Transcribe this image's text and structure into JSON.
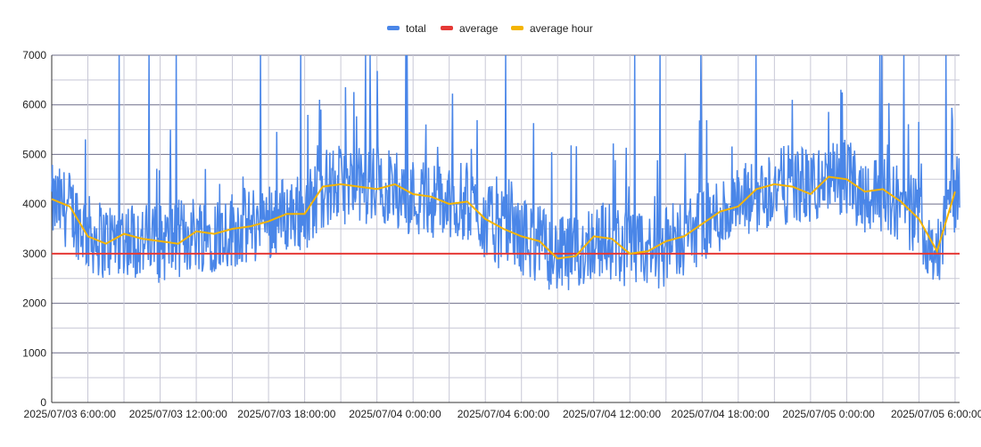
{
  "colors": {
    "total": "#4a86e8",
    "average": "#e53935",
    "average_hour": "#f4b400",
    "grid_major": "#6e6e8a",
    "grid_minor": "#c8c8d6",
    "text": "#222222"
  },
  "chart_data": {
    "type": "line",
    "title": "",
    "xlabel": "",
    "ylabel": "",
    "legend": {
      "position": "top",
      "entries": [
        "total",
        "average",
        "average hour"
      ]
    },
    "grid": true,
    "ylim": [
      0,
      7000
    ],
    "yticks": [
      0,
      1000,
      2000,
      3000,
      4000,
      5000,
      6000,
      7000
    ],
    "xlim": [
      "2025/07/03 5:00:00",
      "2025/07/05 7:15:00"
    ],
    "xticks": [
      "2025/07/03 6:00:00",
      "2025/07/03 12:00:00",
      "2025/07/03 18:00:00",
      "2025/07/04 0:00:00",
      "2025/07/04 6:00:00",
      "2025/07/04 12:00:00",
      "2025/07/04 18:00:00",
      "2025/07/05 0:00:00",
      "2025/07/05 6:00:00"
    ],
    "series": [
      {
        "name": "total",
        "kind": "noisy line (dense samples)",
        "x": [
          "2025/07/03 5:00:00",
          "2025/07/03 6:00:00",
          "2025/07/03 7:00:00",
          "2025/07/03 8:00:00",
          "2025/07/03 9:00:00",
          "2025/07/03 10:00:00",
          "2025/07/03 11:00:00",
          "2025/07/03 12:00:00",
          "2025/07/03 13:00:00",
          "2025/07/03 14:00:00",
          "2025/07/03 15:00:00",
          "2025/07/03 16:00:00",
          "2025/07/03 17:00:00",
          "2025/07/03 18:00:00",
          "2025/07/03 19:00:00",
          "2025/07/03 20:00:00",
          "2025/07/03 21:00:00",
          "2025/07/03 22:00:00",
          "2025/07/03 23:00:00",
          "2025/07/04 0:00:00",
          "2025/07/04 1:00:00",
          "2025/07/04 2:00:00",
          "2025/07/04 3:00:00",
          "2025/07/04 4:00:00",
          "2025/07/04 5:00:00",
          "2025/07/04 6:00:00",
          "2025/07/04 7:00:00",
          "2025/07/04 8:00:00",
          "2025/07/04 9:00:00",
          "2025/07/04 10:00:00",
          "2025/07/04 11:00:00",
          "2025/07/04 12:00:00",
          "2025/07/04 13:00:00",
          "2025/07/04 14:00:00",
          "2025/07/04 15:00:00",
          "2025/07/04 16:00:00",
          "2025/07/04 17:00:00",
          "2025/07/04 18:00:00",
          "2025/07/04 19:00:00",
          "2025/07/04 20:00:00",
          "2025/07/04 21:00:00",
          "2025/07/04 22:00:00",
          "2025/07/04 23:00:00",
          "2025/07/05 0:00:00",
          "2025/07/05 1:00:00",
          "2025/07/05 2:00:00",
          "2025/07/05 3:00:00",
          "2025/07/05 4:00:00",
          "2025/07/05 5:00:00",
          "2025/07/05 6:00:00",
          "2025/07/05 7:00:00"
        ],
        "values": [
          4000,
          3900,
          3400,
          3250,
          3350,
          3250,
          3200,
          3300,
          3450,
          3400,
          3500,
          3550,
          3700,
          3800,
          3850,
          4300,
          4400,
          4350,
          4400,
          4300,
          4150,
          4100,
          4000,
          4050,
          3650,
          3450,
          3350,
          3200,
          2950,
          2950,
          3300,
          3250,
          3050,
          3000,
          3150,
          3350,
          3550,
          3800,
          3950,
          4150,
          4350,
          4400,
          4350,
          4450,
          4550,
          4200,
          4250,
          4000,
          3700,
          3000,
          4200
        ],
        "spread": 800
      },
      {
        "name": "average",
        "kind": "constant line",
        "value": 3000
      },
      {
        "name": "average hour",
        "x": [
          "2025/07/03 5:00:00",
          "2025/07/03 6:00:00",
          "2025/07/03 7:00:00",
          "2025/07/03 8:00:00",
          "2025/07/03 9:00:00",
          "2025/07/03 10:00:00",
          "2025/07/03 11:00:00",
          "2025/07/03 12:00:00",
          "2025/07/03 13:00:00",
          "2025/07/03 14:00:00",
          "2025/07/03 15:00:00",
          "2025/07/03 16:00:00",
          "2025/07/03 17:00:00",
          "2025/07/03 18:00:00",
          "2025/07/03 19:00:00",
          "2025/07/03 20:00:00",
          "2025/07/03 21:00:00",
          "2025/07/03 22:00:00",
          "2025/07/03 23:00:00",
          "2025/07/04 0:00:00",
          "2025/07/04 1:00:00",
          "2025/07/04 2:00:00",
          "2025/07/04 3:00:00",
          "2025/07/04 4:00:00",
          "2025/07/04 5:00:00",
          "2025/07/04 6:00:00",
          "2025/07/04 7:00:00",
          "2025/07/04 8:00:00",
          "2025/07/04 9:00:00",
          "2025/07/04 10:00:00",
          "2025/07/04 11:00:00",
          "2025/07/04 12:00:00",
          "2025/07/04 13:00:00",
          "2025/07/04 14:00:00",
          "2025/07/04 15:00:00",
          "2025/07/04 16:00:00",
          "2025/07/04 17:00:00",
          "2025/07/04 18:00:00",
          "2025/07/04 19:00:00",
          "2025/07/04 20:00:00",
          "2025/07/04 21:00:00",
          "2025/07/04 22:00:00",
          "2025/07/04 23:00:00",
          "2025/07/05 0:00:00",
          "2025/07/05 1:00:00",
          "2025/07/05 2:00:00",
          "2025/07/05 3:00:00",
          "2025/07/05 4:00:00",
          "2025/07/05 5:00:00",
          "2025/07/05 6:00:00",
          "2025/07/05 7:00:00"
        ],
        "values": [
          4100,
          3950,
          3350,
          3200,
          3400,
          3300,
          3250,
          3200,
          3450,
          3400,
          3500,
          3550,
          3650,
          3800,
          3800,
          4350,
          4400,
          4350,
          4300,
          4400,
          4200,
          4150,
          4000,
          4050,
          3700,
          3500,
          3350,
          3250,
          2900,
          2950,
          3350,
          3300,
          3000,
          3050,
          3250,
          3350,
          3600,
          3850,
          3950,
          4300,
          4400,
          4350,
          4200,
          4550,
          4500,
          4250,
          4300,
          4050,
          3700,
          3050,
          4250
        ]
      }
    ]
  }
}
